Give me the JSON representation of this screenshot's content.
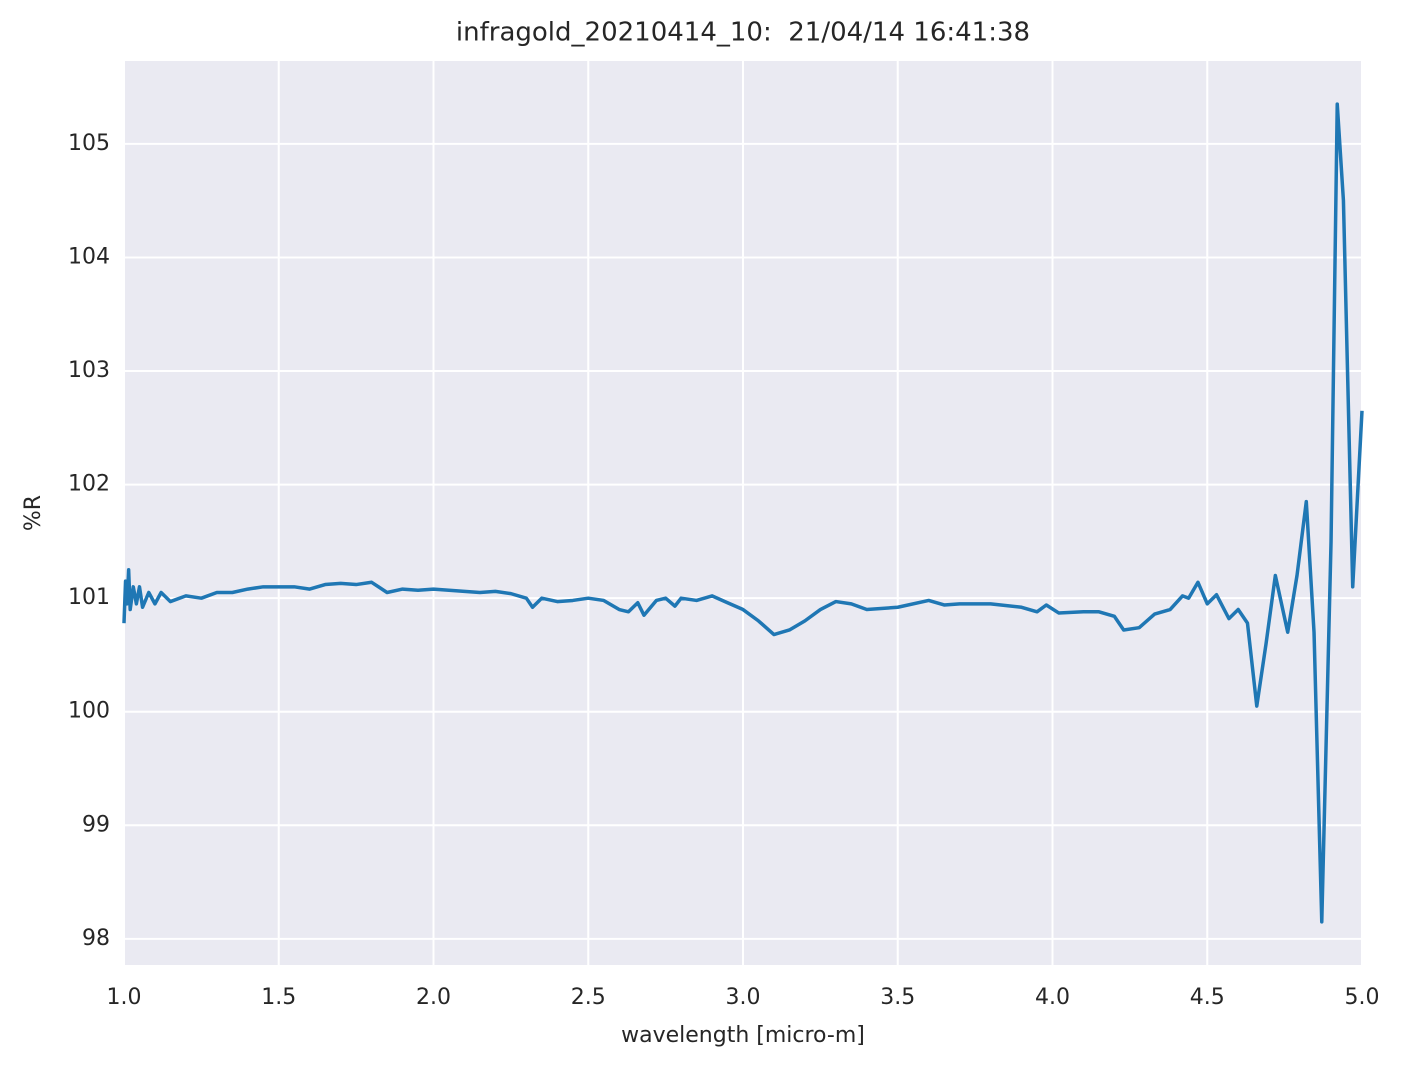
{
  "chart_data": {
    "type": "line",
    "title": "infragold_20210414_10:  21/04/14 16:41:38",
    "xlabel": "wavelength [micro-m]",
    "ylabel": "%R",
    "color": "#1f77b4",
    "grid": true,
    "xlim": [
      1,
      5
    ],
    "ylim": [
      97.77,
      105.73
    ],
    "xticks": [
      {
        "value": 1,
        "label": "1.0"
      },
      1.5,
      {
        "value": 2,
        "label": "2.0"
      },
      2.5,
      {
        "value": 3,
        "label": "3.0"
      },
      3.5,
      {
        "value": 4,
        "label": "4.0"
      },
      4.5,
      {
        "value": 5,
        "label": "5.0"
      }
    ],
    "yticks": [
      98,
      99,
      100,
      101,
      102,
      103,
      104,
      105
    ],
    "x": [
      1.0,
      1.005,
      1.01,
      1.015,
      1.02,
      1.03,
      1.04,
      1.05,
      1.06,
      1.08,
      1.1,
      1.12,
      1.15,
      1.2,
      1.25,
      1.3,
      1.35,
      1.4,
      1.45,
      1.5,
      1.55,
      1.6,
      1.65,
      1.7,
      1.75,
      1.8,
      1.85,
      1.9,
      1.95,
      2.0,
      2.05,
      2.1,
      2.15,
      2.2,
      2.25,
      2.3,
      2.32,
      2.35,
      2.4,
      2.45,
      2.5,
      2.55,
      2.6,
      2.63,
      2.66,
      2.68,
      2.72,
      2.75,
      2.78,
      2.8,
      2.85,
      2.9,
      2.95,
      3.0,
      3.05,
      3.1,
      3.15,
      3.2,
      3.25,
      3.3,
      3.35,
      3.4,
      3.5,
      3.6,
      3.65,
      3.7,
      3.8,
      3.9,
      3.95,
      3.98,
      4.02,
      4.1,
      4.15,
      4.2,
      4.23,
      4.28,
      4.33,
      4.38,
      4.42,
      4.44,
      4.47,
      4.5,
      4.53,
      4.57,
      4.6,
      4.63,
      4.66,
      4.69,
      4.72,
      4.76,
      4.79,
      4.82,
      4.845,
      4.87,
      4.9,
      4.92,
      4.94,
      4.97,
      5.0
    ],
    "values": [
      100.78,
      101.15,
      100.95,
      101.25,
      100.9,
      101.1,
      100.95,
      101.1,
      100.92,
      101.05,
      100.95,
      101.05,
      100.97,
      101.02,
      101.0,
      101.05,
      101.05,
      101.08,
      101.1,
      101.1,
      101.1,
      101.08,
      101.12,
      101.13,
      101.12,
      101.14,
      101.05,
      101.08,
      101.07,
      101.08,
      101.07,
      101.06,
      101.05,
      101.06,
      101.04,
      101.0,
      100.92,
      101.0,
      100.97,
      100.98,
      101.0,
      100.98,
      100.9,
      100.88,
      100.96,
      100.85,
      100.98,
      101.0,
      100.93,
      101.0,
      100.98,
      101.02,
      100.96,
      100.9,
      100.8,
      100.68,
      100.72,
      100.8,
      100.9,
      100.97,
      100.95,
      100.9,
      100.92,
      100.98,
      100.94,
      100.95,
      100.95,
      100.92,
      100.88,
      100.94,
      100.87,
      100.88,
      100.88,
      100.84,
      100.72,
      100.74,
      100.86,
      100.9,
      101.02,
      101.0,
      101.14,
      100.95,
      101.03,
      100.82,
      100.9,
      100.78,
      100.05,
      100.6,
      101.2,
      100.7,
      101.2,
      101.85,
      100.7,
      98.15,
      101.5,
      105.35,
      104.5,
      101.1,
      102.65
    ]
  }
}
